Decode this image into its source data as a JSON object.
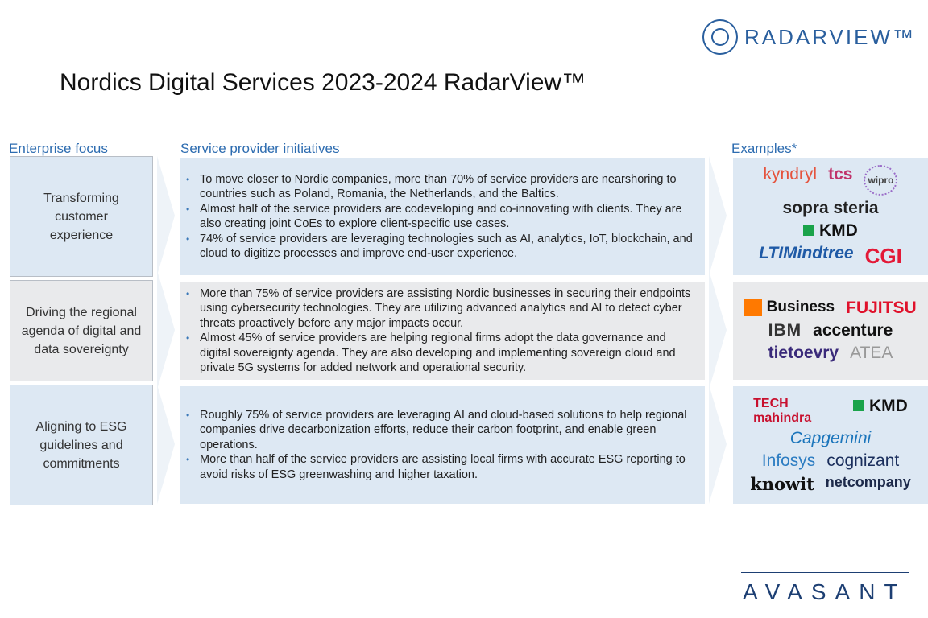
{
  "brand": "RADARVIEW™",
  "title": "Nordics Digital Services 2023-2024 RadarView™",
  "headers": {
    "focus": "Enterprise focus",
    "initiatives": "Service provider initiatives",
    "examples": "Examples*"
  },
  "rows": [
    {
      "focus": "Transforming customer experience",
      "bullets": [
        "To move closer to Nordic companies, more than 70% of service providers are nearshoring to countries such as Poland, Romania, the Netherlands, and the Baltics.",
        "Almost half of the service providers are codeveloping and co-innovating with clients. They are also creating joint CoEs to explore client-specific use cases.",
        "74% of service providers are leveraging technologies such as AI, analytics, IoT, blockchain, and cloud to digitize processes and improve end-user experience."
      ],
      "examples": [
        "kyndryl",
        "tcs",
        "wipro",
        "sopra steria",
        "KMD",
        "LTIMindtree",
        "CGI"
      ]
    },
    {
      "focus": "Driving the regional agenda of digital and data sovereignty",
      "bullets": [
        "More than 75% of service providers are assisting Nordic businesses in securing their endpoints using cybersecurity technologies. They are utilizing advanced analytics and AI to detect cyber threats proactively before any major impacts occur.",
        "Almost 45% of service providers are helping regional firms adopt the data governance and digital sovereignty agenda. They are also developing and implementing sovereign cloud and private 5G systems for added network and operational security."
      ],
      "examples": [
        "Business",
        "FUJITSU",
        "IBM",
        "accenture",
        "tietoevry",
        "ATEA"
      ]
    },
    {
      "focus": "Aligning to ESG guidelines and commitments",
      "bullets": [
        "Roughly 75% of service providers are leveraging AI and cloud-based solutions to help regional companies drive decarbonization efforts, reduce their carbon footprint, and enable green operations.",
        "More than half of the service providers are assisting local firms with accurate ESG reporting to avoid risks of ESG greenwashing and higher taxation."
      ],
      "examples": [
        "TECH mahindra",
        "KMD",
        "Capgemini",
        "Infosys",
        "cognizant",
        "knowit",
        "netcompany"
      ]
    }
  ],
  "footer": "AVASANT"
}
